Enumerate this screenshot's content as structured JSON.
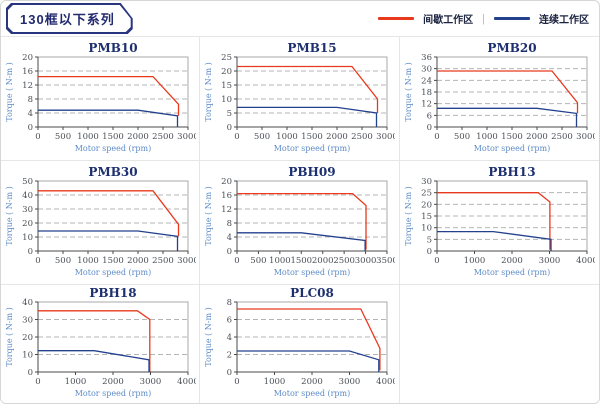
{
  "page": {
    "title_badge": "130框以下系列"
  },
  "legend": {
    "separator": "|",
    "items": [
      {
        "label": "间歇工作区",
        "color": "#e8391d"
      },
      {
        "label": "连续工作区",
        "color": "#24418e"
      }
    ]
  },
  "chart_data": [
    {
      "type": "line",
      "title": "PMB10",
      "xlabel": "Motor speed (rpm)",
      "ylabel": "Torque ( N-m )",
      "xlim": [
        0,
        3000
      ],
      "xticks": [
        0,
        500,
        1000,
        1500,
        2000,
        2500,
        3000
      ],
      "ylim": [
        0,
        20
      ],
      "yticks": [
        0,
        4,
        8,
        12,
        16,
        20
      ],
      "grid": "dashed-horizontal",
      "legend_position": "none",
      "series": [
        {
          "name": "间歇工作区",
          "color": "#e8391d",
          "points": [
            [
              0,
              14.4
            ],
            [
              2300,
              14.4
            ],
            [
              2810,
              6.5
            ],
            [
              2810,
              3.2
            ]
          ]
        },
        {
          "name": "连续工作区",
          "color": "#24418e",
          "points": [
            [
              0,
              4.8
            ],
            [
              2000,
              4.8
            ],
            [
              2790,
              3.2
            ],
            [
              2790,
              0
            ]
          ]
        }
      ]
    },
    {
      "type": "line",
      "title": "PMB15",
      "xlabel": "Motor speed (rpm)",
      "ylabel": "Torque ( N-m )",
      "xlim": [
        0,
        3000
      ],
      "xticks": [
        0,
        500,
        1000,
        1500,
        2000,
        2500,
        3000
      ],
      "ylim": [
        0,
        25
      ],
      "yticks": [
        0,
        5,
        10,
        15,
        20,
        25
      ],
      "grid": "dashed-horizontal",
      "legend_position": "none",
      "series": [
        {
          "name": "间歇工作区",
          "color": "#e8391d",
          "points": [
            [
              0,
              21.6
            ],
            [
              2300,
              21.6
            ],
            [
              2810,
              10
            ],
            [
              2810,
              5
            ]
          ]
        },
        {
          "name": "连续工作区",
          "color": "#24418e",
          "points": [
            [
              0,
              7
            ],
            [
              2000,
              7
            ],
            [
              2790,
              5
            ],
            [
              2790,
              0
            ]
          ]
        }
      ]
    },
    {
      "type": "line",
      "title": "PMB20",
      "xlabel": "Motor speed (rpm)",
      "ylabel": "Torque ( N-m )",
      "xlim": [
        0,
        3000
      ],
      "xticks": [
        0,
        500,
        1000,
        1500,
        2000,
        2500,
        3000
      ],
      "ylim": [
        0,
        36
      ],
      "yticks": [
        0,
        6,
        12,
        18,
        24,
        30,
        36
      ],
      "grid": "dashed-horizontal",
      "legend_position": "none",
      "series": [
        {
          "name": "间歇工作区",
          "color": "#e8391d",
          "points": [
            [
              0,
              28.8
            ],
            [
              2300,
              28.8
            ],
            [
              2810,
              12.5
            ],
            [
              2810,
              7
            ]
          ]
        },
        {
          "name": "连续工作区",
          "color": "#24418e",
          "points": [
            [
              0,
              9.6
            ],
            [
              2000,
              9.6
            ],
            [
              2790,
              7
            ],
            [
              2790,
              0
            ]
          ]
        }
      ]
    },
    {
      "type": "line",
      "title": "PMB30",
      "xlabel": "Motor speed (rpm)",
      "ylabel": "Torque ( N-m )",
      "xlim": [
        0,
        3000
      ],
      "xticks": [
        0,
        500,
        1000,
        1500,
        2000,
        2500,
        3000
      ],
      "ylim": [
        0,
        50
      ],
      "yticks": [
        0,
        10,
        20,
        30,
        40,
        50
      ],
      "grid": "dashed-horizontal",
      "legend_position": "none",
      "series": [
        {
          "name": "间歇工作区",
          "color": "#e8391d",
          "points": [
            [
              0,
              43
            ],
            [
              2300,
              43
            ],
            [
              2810,
              19
            ],
            [
              2810,
              10.5
            ]
          ]
        },
        {
          "name": "连续工作区",
          "color": "#24418e",
          "points": [
            [
              0,
              14.3
            ],
            [
              2000,
              14.3
            ],
            [
              2790,
              10.5
            ],
            [
              2790,
              0
            ]
          ]
        }
      ]
    },
    {
      "type": "line",
      "title": "PBH09",
      "xlabel": "Motor speed (rpm)",
      "ylabel": "Torque ( N-m )",
      "xlim": [
        0,
        3500
      ],
      "xticks": [
        0,
        500,
        1000,
        1500,
        2000,
        2500,
        3000,
        3500
      ],
      "ylim": [
        0,
        20
      ],
      "yticks": [
        0,
        4,
        8,
        12,
        16,
        20
      ],
      "grid": "dashed-horizontal",
      "legend_position": "none",
      "series": [
        {
          "name": "间歇工作区",
          "color": "#e8391d",
          "points": [
            [
              0,
              16.4
            ],
            [
              2700,
              16.4
            ],
            [
              3010,
              13
            ],
            [
              3010,
              0.4
            ]
          ]
        },
        {
          "name": "连续工作区",
          "color": "#24418e",
          "points": [
            [
              0,
              5.2
            ],
            [
              1500,
              5.2
            ],
            [
              2990,
              3
            ],
            [
              2990,
              0
            ]
          ]
        }
      ]
    },
    {
      "type": "line",
      "title": "PBH13",
      "xlabel": "Motor speed (rpm)",
      "ylabel": "Torque ( N-m )",
      "xlim": [
        0,
        4000
      ],
      "xticks": [
        0,
        1000,
        2000,
        3000,
        4000
      ],
      "ylim": [
        0,
        30
      ],
      "yticks": [
        0,
        5,
        10,
        15,
        20,
        25,
        30
      ],
      "grid": "dashed-horizontal",
      "legend_position": "none",
      "series": [
        {
          "name": "间歇工作区",
          "color": "#e8391d",
          "points": [
            [
              0,
              25
            ],
            [
              2700,
              25
            ],
            [
              3010,
              21
            ],
            [
              3010,
              0.5
            ]
          ]
        },
        {
          "name": "连续工作区",
          "color": "#24418e",
          "points": [
            [
              0,
              8.3
            ],
            [
              1500,
              8.3
            ],
            [
              3040,
              5
            ],
            [
              3040,
              0
            ]
          ]
        }
      ]
    },
    {
      "type": "line",
      "title": "PBH18",
      "xlabel": "Motor speed (rpm)",
      "ylabel": "Torque ( N-m )",
      "xlim": [
        0,
        4000
      ],
      "xticks": [
        0,
        1000,
        2000,
        3000,
        4000
      ],
      "ylim": [
        0,
        40
      ],
      "yticks": [
        0,
        10,
        20,
        30,
        40
      ],
      "grid": "dashed-horizontal",
      "legend_position": "none",
      "series": [
        {
          "name": "间歇工作区",
          "color": "#e8391d",
          "points": [
            [
              0,
              35
            ],
            [
              2650,
              35
            ],
            [
              2980,
              30
            ],
            [
              2980,
              0.3
            ]
          ]
        },
        {
          "name": "连续工作区",
          "color": "#24418e",
          "points": [
            [
              0,
              12.2
            ],
            [
              1500,
              12.2
            ],
            [
              2960,
              7
            ],
            [
              2960,
              0
            ]
          ]
        }
      ]
    },
    {
      "type": "line",
      "title": "PLC08",
      "xlabel": "Motor speed (rpm)",
      "ylabel": "Torque ( N-m )",
      "xlim": [
        0,
        4000
      ],
      "xticks": [
        0,
        1000,
        2000,
        3000,
        4000
      ],
      "ylim": [
        0,
        8
      ],
      "yticks": [
        0,
        2,
        4,
        6,
        8
      ],
      "grid": "dashed-horizontal",
      "legend_position": "none",
      "series": [
        {
          "name": "间歇工作区",
          "color": "#e8391d",
          "points": [
            [
              0,
              7.2
            ],
            [
              3300,
              7.2
            ],
            [
              3810,
              2.7
            ],
            [
              3810,
              0.2
            ]
          ]
        },
        {
          "name": "连续工作区",
          "color": "#24418e",
          "points": [
            [
              0,
              2.4
            ],
            [
              3000,
              2.4
            ],
            [
              3780,
              1.4
            ],
            [
              3780,
              0
            ]
          ]
        }
      ]
    }
  ]
}
